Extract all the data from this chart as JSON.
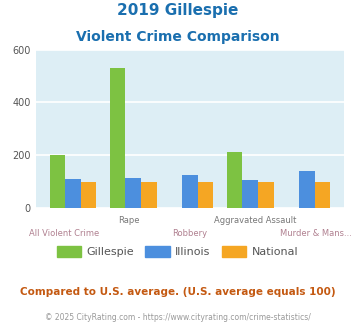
{
  "title_line1": "2019 Gillespie",
  "title_line2": "Violent Crime Comparison",
  "title_color": "#1a6faf",
  "gillespie": [
    200,
    530,
    0,
    210,
    0
  ],
  "illinois": [
    110,
    115,
    125,
    105,
    140
  ],
  "national": [
    100,
    100,
    100,
    100,
    100
  ],
  "gillespie_color": "#7dc242",
  "illinois_color": "#4c8fde",
  "national_color": "#f5a623",
  "ylim": [
    0,
    600
  ],
  "yticks": [
    0,
    200,
    400,
    600
  ],
  "bg_color": "#ddeef5",
  "grid_color": "#ffffff",
  "top_labels": [
    "",
    "Rape",
    "",
    "Aggravated Assault",
    ""
  ],
  "bottom_labels": [
    "All Violent Crime",
    "",
    "Robbery",
    "",
    "Murder & Mans..."
  ],
  "top_label_color": "#777777",
  "bottom_label_color": "#b08090",
  "footnote": "Compared to U.S. average. (U.S. average equals 100)",
  "footnote2": "© 2025 CityRating.com - https://www.cityrating.com/crime-statistics/",
  "footnote_color": "#c45911",
  "footnote2_color": "#999999",
  "legend_labels": [
    "Gillespie",
    "Illinois",
    "National"
  ],
  "legend_text_color": "#555555"
}
